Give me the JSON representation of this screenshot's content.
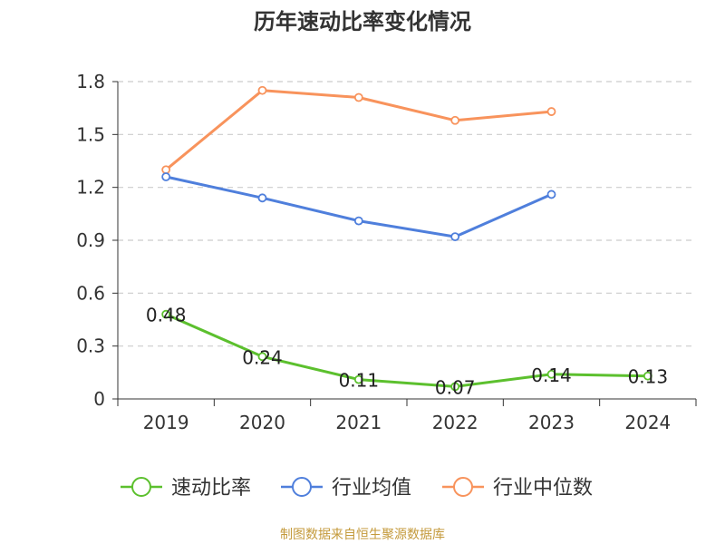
{
  "chart_data": {
    "type": "line",
    "title": "历年速动比率变化情况",
    "categories": [
      "2019",
      "2020",
      "2021",
      "2022",
      "2023",
      "2024"
    ],
    "ylim": [
      0,
      1.8
    ],
    "yticks": [
      "0",
      "0.3",
      "0.6",
      "0.9",
      "1.2",
      "1.5",
      "1.8"
    ],
    "grid": true,
    "legend_position": "bottom",
    "series": [
      {
        "name": "速动比率",
        "color": "#5cc02e",
        "values": [
          0.48,
          0.24,
          0.11,
          0.07,
          0.14,
          0.13
        ],
        "labels": [
          "0.48",
          "0.24",
          "0.11",
          "0.07",
          "0.14",
          "0.13"
        ]
      },
      {
        "name": "行业均值",
        "color": "#4f7fdc",
        "values": [
          1.26,
          1.14,
          1.01,
          0.92,
          1.16,
          null
        ]
      },
      {
        "name": "行业中位数",
        "color": "#f8935c",
        "values": [
          1.3,
          1.75,
          1.71,
          1.58,
          1.63,
          null
        ]
      }
    ]
  },
  "footer": {
    "source": "制图数据来自恒生聚源数据库"
  }
}
